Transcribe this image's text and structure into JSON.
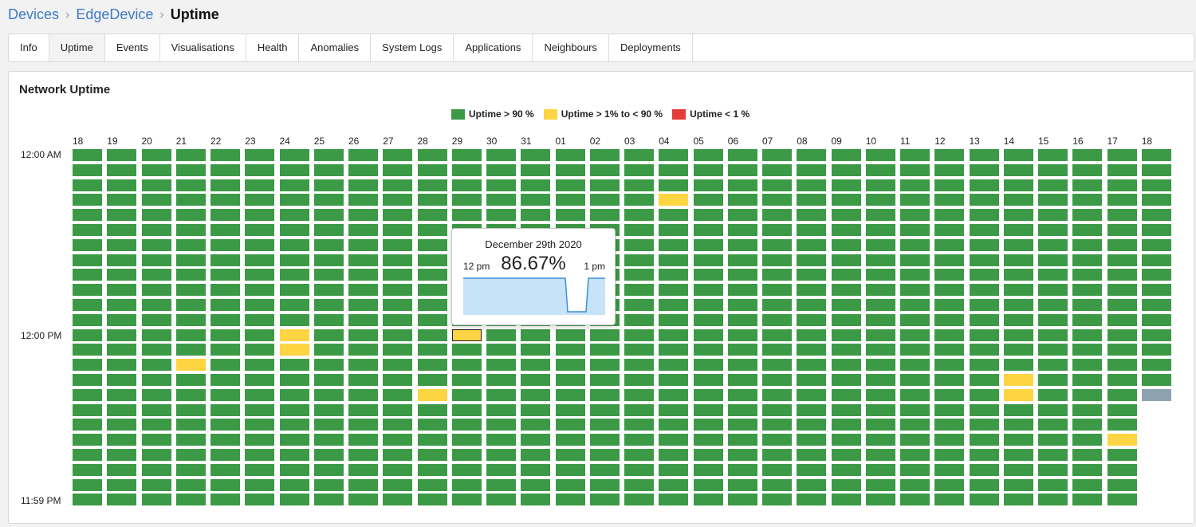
{
  "breadcrumb": {
    "items": [
      "Devices",
      "EdgeDevice"
    ],
    "current": "Uptime"
  },
  "tabs": [
    "Info",
    "Uptime",
    "Events",
    "Visualisations",
    "Health",
    "Anomalies",
    "System Logs",
    "Applications",
    "Neighbours",
    "Deployments"
  ],
  "active_tab": "Uptime",
  "panel": {
    "title": "Network Uptime"
  },
  "legend": [
    {
      "label": "Uptime > 90 %",
      "color": "#3c9a46"
    },
    {
      "label": "Uptime > 1% to < 90 %",
      "color": "#fdd442"
    },
    {
      "label": "Uptime < 1 %",
      "color": "#e53c3c"
    }
  ],
  "colors": {
    "high": "#3c9a46",
    "mid": "#fdd442",
    "low": "#e53c3c",
    "nodata": "#8ea3b0"
  },
  "columns": [
    "18",
    "19",
    "20",
    "21",
    "22",
    "23",
    "24",
    "25",
    "26",
    "27",
    "28",
    "29",
    "30",
    "31",
    "01",
    "02",
    "03",
    "04",
    "05",
    "06",
    "07",
    "08",
    "09",
    "10",
    "11",
    "12",
    "13",
    "14",
    "15",
    "16",
    "17",
    "18"
  ],
  "row_labels": {
    "top": "12:00 AM",
    "middle": "12:00 PM",
    "bottom": "11:59 PM"
  },
  "chart_data": {
    "type": "heatmap",
    "x_categories": [
      "18",
      "19",
      "20",
      "21",
      "22",
      "23",
      "24",
      "25",
      "26",
      "27",
      "28",
      "29",
      "30",
      "31",
      "01",
      "02",
      "03",
      "04",
      "05",
      "06",
      "07",
      "08",
      "09",
      "10",
      "11",
      "12",
      "13",
      "14",
      "15",
      "16",
      "17",
      "18"
    ],
    "rows": 24,
    "default_status": "Uptime > 90 %",
    "exceptions": [
      {
        "col": 17,
        "row": 3,
        "status": "mid"
      },
      {
        "col": 6,
        "row": 12,
        "status": "mid"
      },
      {
        "col": 6,
        "row": 13,
        "status": "mid"
      },
      {
        "col": 11,
        "row": 12,
        "status": "mid",
        "selected": true
      },
      {
        "col": 3,
        "row": 14,
        "status": "mid"
      },
      {
        "col": 27,
        "row": 15,
        "status": "mid"
      },
      {
        "col": 10,
        "row": 16,
        "status": "mid"
      },
      {
        "col": 27,
        "row": 16,
        "status": "mid"
      },
      {
        "col": 31,
        "row": 16,
        "status": "nodata"
      },
      {
        "col": 30,
        "row": 19,
        "status": "mid"
      }
    ],
    "last_column_rows": 17
  },
  "tooltip": {
    "date": "December 29th 2020",
    "start": "12 pm",
    "end": "1 pm",
    "value": "86.67%"
  }
}
